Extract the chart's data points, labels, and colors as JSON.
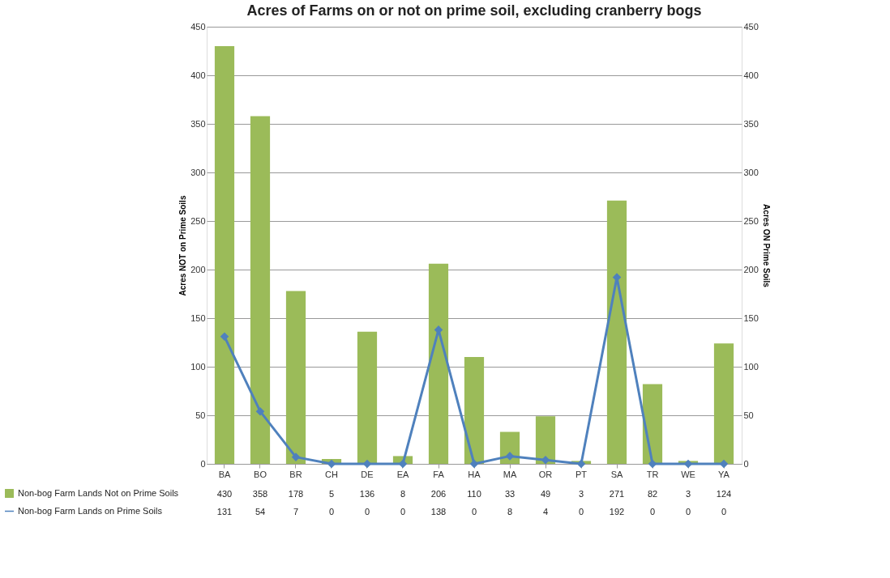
{
  "chart_data": {
    "type": "bar",
    "title": "Acres of Farms on or not on prime soil, excluding cranberry bogs",
    "ylabel": "Acres NOT on Prime Soils",
    "y2label": "Acres ON Prime Soils",
    "categories": [
      "BA",
      "BO",
      "BR",
      "CH",
      "DE",
      "EA",
      "FA",
      "HA",
      "MA",
      "OR",
      "PT",
      "SA",
      "TR",
      "WE",
      "YA"
    ],
    "series": [
      {
        "name": "Non-bog Farm Lands Not on Prime Soils",
        "color": "#9bbb59",
        "values": [
          430,
          358,
          178,
          5,
          136,
          8,
          206,
          110,
          33,
          49,
          3,
          271,
          82,
          3,
          124
        ]
      },
      {
        "name": "Non-bog Farm Lands on Prime Soils",
        "type": "line",
        "axis": "y2",
        "color": "#4f81bd",
        "marker": "diamond",
        "values": [
          131,
          54,
          7,
          0,
          0,
          0,
          138,
          0,
          8,
          4,
          0,
          192,
          0,
          0,
          0
        ]
      }
    ],
    "ylim": [
      0,
      450
    ],
    "yticks": [
      0,
      50,
      100,
      150,
      200,
      250,
      300,
      350,
      400,
      450
    ],
    "y2lim": [
      0,
      450
    ],
    "y2ticks": [
      0,
      50,
      100,
      150,
      200,
      250,
      300,
      350,
      400,
      450
    ],
    "grid": "y",
    "legend": "bottom left",
    "data_labels": true
  }
}
